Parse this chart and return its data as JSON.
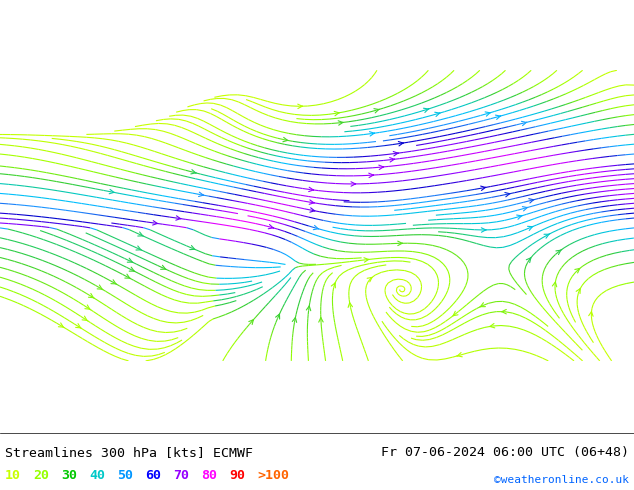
{
  "title_left": "Streamlines 300 hPa [kts] ECMWF",
  "title_right": "Fr 07-06-2024 06:00 UTC (06+48)",
  "copyright": "©weatheronline.co.uk",
  "legend_values": [
    "10",
    "20",
    "30",
    "40",
    "50",
    "60",
    "70",
    "80",
    "90",
    ">100"
  ],
  "legend_colors": [
    "#c8ff00",
    "#96ff00",
    "#00c800",
    "#00c8c8",
    "#0096ff",
    "#0000ff",
    "#9600ff",
    "#ff00ff",
    "#ff0000",
    "#ff6400"
  ],
  "background_color": "#c8ff96",
  "map_bg": "#c8ff96",
  "land_color": "#c8ff96",
  "sea_color": "#c8ffc8",
  "border_color": "#a0a0a0",
  "streamline_color_slow": "#96ff00",
  "streamline_color_fast": "#0000cd",
  "figsize": [
    6.34,
    4.9
  ],
  "dpi": 100
}
